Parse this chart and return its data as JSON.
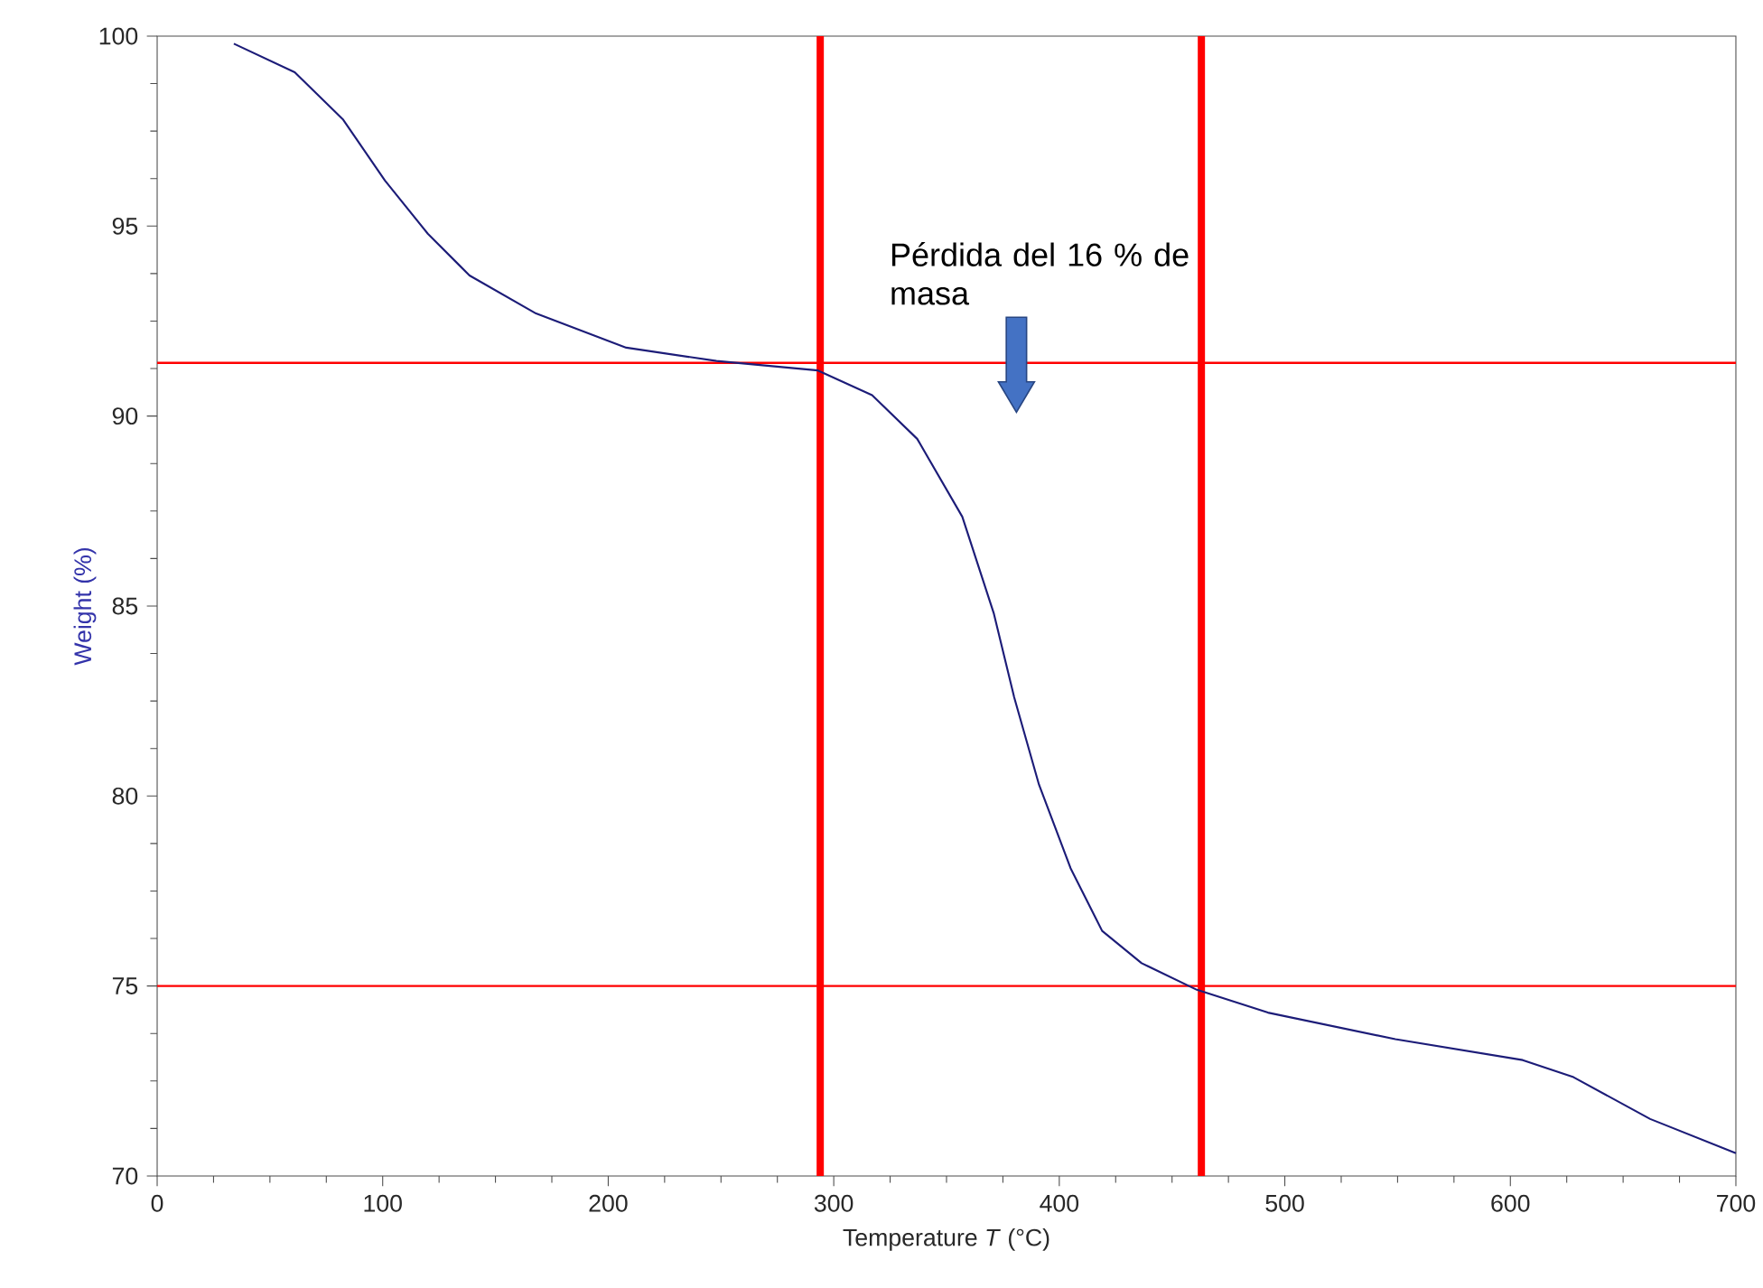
{
  "chart_data": {
    "type": "line",
    "xlabel": "Temperature *T* (°C)",
    "ylabel": "Weight (%)",
    "xlim": [
      0,
      700
    ],
    "ylim": [
      70,
      100
    ],
    "xticks": [
      0,
      100,
      200,
      300,
      400,
      500,
      600,
      700
    ],
    "yticks": [
      70,
      75,
      80,
      85,
      90,
      95,
      100
    ],
    "grid": false,
    "legend": false,
    "marker": "none",
    "line_style": "solid",
    "series": [
      {
        "color": "#1c1c78",
        "x": [
          34,
          61,
          82.5,
          101,
          120,
          138.5,
          168,
          208,
          248,
          293,
          317,
          337,
          357,
          371,
          380,
          391,
          405,
          419,
          436.5,
          461,
          492.5,
          549,
          605.5,
          628,
          662,
          700
        ],
        "values": [
          99.8,
          99.05,
          97.8,
          96.2,
          94.8,
          93.7,
          92.7,
          91.8,
          91.45,
          91.2,
          90.55,
          89.4,
          87.35,
          84.8,
          82.6,
          80.3,
          78.1,
          76.45,
          75.6,
          74.9,
          74.3,
          73.6,
          73.05,
          72.6,
          71.5,
          70.6
        ]
      }
    ],
    "ref_lines": [
      {
        "axis": "y",
        "value": 91.4,
        "color": "#ff0000"
      },
      {
        "axis": "y",
        "value": 75,
        "color": "#ff0000"
      },
      {
        "axis": "x",
        "value": 294,
        "color": "#ff0000"
      },
      {
        "axis": "x",
        "value": 463,
        "color": "#ff0000"
      }
    ],
    "annotations": [
      "Pérdida del 16 % de masa"
    ]
  }
}
